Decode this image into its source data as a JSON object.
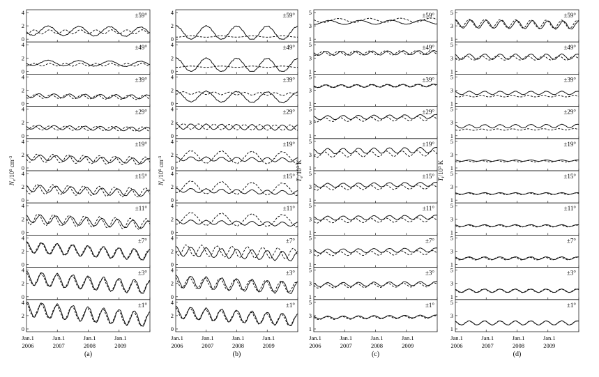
{
  "chart_data": {
    "type": "line",
    "series_styles": [
      "solid",
      "dashed"
    ],
    "latitudes": [
      "±59°",
      "±49°",
      "±39°",
      "±29°",
      "±19°",
      "±15°",
      "±11°",
      "±7°",
      "±3°",
      "±1°"
    ],
    "x_ticks": [
      {
        "top": "Jan.1",
        "bottom": "2006"
      },
      {
        "top": "Jan.1",
        "bottom": "2007"
      },
      {
        "top": "Jan.1",
        "bottom": "2008"
      },
      {
        "top": "Jan.1",
        "bottom": "2009"
      }
    ],
    "xlim": [
      2006.0,
      2010.0
    ],
    "panels": [
      {
        "id": "a",
        "label": "(a)",
        "ylabel_main": "N",
        "ylabel_sub": "e",
        "ylabel_units": "/10",
        "ylabel_exp": "6",
        "ylabel_tail": " cm",
        "ylabel_tailexp": "-3",
        "ylim": [
          0,
          4
        ],
        "yticks": [
          0,
          2,
          4
        ],
        "rows": [
          {
            "solid": {
              "mean": 1.3,
              "amp": 0.7,
              "freq": 1,
              "phase": 0.3,
              "slope": -0.05
            },
            "dashed": {
              "mean": 1.1,
              "amp": 0.3,
              "freq": 2,
              "phase": 0.5,
              "slope": 0
            }
          },
          {
            "solid": {
              "mean": 1.3,
              "amp": 0.4,
              "freq": 1,
              "phase": 0.3,
              "slope": -0.05
            },
            "dashed": {
              "mean": 1.0,
              "amp": 0.2,
              "freq": 2,
              "phase": 0.5,
              "slope": 0
            }
          },
          {
            "solid": {
              "mean": 1.2,
              "amp": 0.3,
              "freq": 2,
              "phase": 0.2,
              "slope": -0.05
            },
            "dashed": {
              "mean": 1.1,
              "amp": 0.3,
              "freq": 2,
              "phase": 0.4,
              "slope": -0.05
            }
          },
          {
            "solid": {
              "mean": 1.3,
              "amp": 0.3,
              "freq": 2,
              "phase": 0.2,
              "slope": -0.08
            },
            "dashed": {
              "mean": 1.2,
              "amp": 0.3,
              "freq": 2,
              "phase": 0.5,
              "slope": -0.05
            }
          },
          {
            "solid": {
              "mean": 1.6,
              "amp": 0.4,
              "freq": 2,
              "phase": 0.1,
              "slope": -0.15
            },
            "dashed": {
              "mean": 1.5,
              "amp": 0.6,
              "freq": 2,
              "phase": 0.3,
              "slope": -0.12
            }
          },
          {
            "solid": {
              "mean": 1.8,
              "amp": 0.5,
              "freq": 2,
              "phase": 0.1,
              "slope": -0.2
            },
            "dashed": {
              "mean": 1.7,
              "amp": 0.7,
              "freq": 2,
              "phase": 0.3,
              "slope": -0.15
            }
          },
          {
            "solid": {
              "mean": 2.1,
              "amp": 0.6,
              "freq": 2,
              "phase": 0.1,
              "slope": -0.25
            },
            "dashed": {
              "mean": 2.0,
              "amp": 0.8,
              "freq": 2,
              "phase": 0.25,
              "slope": -0.2
            }
          },
          {
            "solid": {
              "mean": 2.6,
              "amp": 0.8,
              "freq": 2,
              "phase": 0.0,
              "slope": -0.3
            },
            "dashed": {
              "mean": 2.6,
              "amp": 0.8,
              "freq": 2,
              "phase": 0.05,
              "slope": -0.3
            }
          },
          {
            "solid": {
              "mean": 2.8,
              "amp": 1.0,
              "freq": 2,
              "phase": 0.0,
              "slope": -0.35
            },
            "dashed": {
              "mean": 2.7,
              "amp": 0.9,
              "freq": 2,
              "phase": 0.05,
              "slope": -0.35
            }
          },
          {
            "solid": {
              "mean": 3.0,
              "amp": 1.1,
              "freq": 2,
              "phase": 0.0,
              "slope": -0.4
            },
            "dashed": {
              "mean": 2.9,
              "amp": 1.0,
              "freq": 2,
              "phase": 0.05,
              "slope": -0.4
            }
          }
        ]
      },
      {
        "id": "b",
        "label": "(b)",
        "ylabel_main": "N",
        "ylabel_sub": "e",
        "ylabel_units": "/10",
        "ylabel_exp": "6",
        "ylabel_tail": " cm",
        "ylabel_tailexp": "-3",
        "ylim": [
          0,
          4
        ],
        "yticks": [
          0,
          2,
          4
        ],
        "rows": [
          {
            "solid": {
              "mean": 1.0,
              "amp": 1.0,
              "freq": 1,
              "phase": 0.0,
              "slope": -0.02
            },
            "dashed": {
              "mean": 0.4,
              "amp": 0.1,
              "freq": 1,
              "phase": 0.5,
              "slope": 0
            }
          },
          {
            "solid": {
              "mean": 1.0,
              "amp": 1.0,
              "freq": 1,
              "phase": 0.0,
              "slope": -0.02
            },
            "dashed": {
              "mean": 0.7,
              "amp": 0.1,
              "freq": 1,
              "phase": 0.5,
              "slope": 0
            }
          },
          {
            "solid": {
              "mean": 1.1,
              "amp": 0.8,
              "freq": 1,
              "phase": 0.0,
              "slope": -0.05
            },
            "dashed": {
              "mean": 1.6,
              "amp": 0.2,
              "freq": 2,
              "phase": 0.5,
              "slope": -0.05
            }
          },
          {
            "solid": {
              "mean": 1.4,
              "amp": 0.4,
              "freq": 2,
              "phase": 0.0,
              "slope": -0.05
            },
            "dashed": {
              "mean": 1.4,
              "amp": 0.4,
              "freq": 2,
              "phase": 0.5,
              "slope": -0.05
            }
          },
          {
            "solid": {
              "mean": 1.4,
              "amp": 0.3,
              "freq": 2,
              "phase": 0.0,
              "slope": -0.05
            },
            "dashed": {
              "mean": 1.7,
              "amp": 0.9,
              "freq": 1,
              "phase": 0.5,
              "slope": -0.05
            }
          },
          {
            "solid": {
              "mean": 1.5,
              "amp": 0.3,
              "freq": 2,
              "phase": 0.0,
              "slope": -0.1
            },
            "dashed": {
              "mean": 2.0,
              "amp": 0.9,
              "freq": 1,
              "phase": 0.5,
              "slope": -0.1
            }
          },
          {
            "solid": {
              "mean": 1.6,
              "amp": 0.3,
              "freq": 2,
              "phase": 0.0,
              "slope": -0.1
            },
            "dashed": {
              "mean": 2.1,
              "amp": 0.9,
              "freq": 1,
              "phase": 0.5,
              "slope": -0.1
            }
          },
          {
            "solid": {
              "mean": 2.0,
              "amp": 0.7,
              "freq": 2,
              "phase": 0.0,
              "slope": -0.2
            },
            "dashed": {
              "mean": 2.2,
              "amp": 0.8,
              "freq": 2,
              "phase": 0.3,
              "slope": -0.15
            }
          },
          {
            "solid": {
              "mean": 2.3,
              "amp": 0.9,
              "freq": 2,
              "phase": 0.0,
              "slope": -0.25
            },
            "dashed": {
              "mean": 2.2,
              "amp": 0.8,
              "freq": 2,
              "phase": 0.1,
              "slope": -0.2
            }
          },
          {
            "solid": {
              "mean": 2.5,
              "amp": 0.9,
              "freq": 2,
              "phase": 0.0,
              "slope": -0.3
            },
            "dashed": {
              "mean": 2.4,
              "amp": 0.8,
              "freq": 2,
              "phase": 0.05,
              "slope": -0.3
            }
          }
        ]
      },
      {
        "id": "c",
        "label": "(c)",
        "ylabel_main": "T",
        "ylabel_sub": "e",
        "ylabel_units": "/10",
        "ylabel_exp": "3",
        "ylabel_tail": " K",
        "ylabel_tailexp": "",
        "ylim": [
          1,
          5
        ],
        "yticks": [
          1,
          3,
          5
        ],
        "rows": [
          {
            "solid": {
              "mean": 3.5,
              "amp": 0.3,
              "freq": 1,
              "phase": 0.5,
              "slope": 0.02
            },
            "dashed": {
              "mean": 3.8,
              "amp": 0.3,
              "freq": 1,
              "phase": 0.2,
              "slope": 0.02
            }
          },
          {
            "solid": {
              "mean": 3.7,
              "amp": 0.3,
              "freq": 2,
              "phase": 0.2,
              "slope": 0.03
            },
            "dashed": {
              "mean": 3.7,
              "amp": 0.3,
              "freq": 2,
              "phase": 0.4,
              "slope": 0.03
            }
          },
          {
            "solid": {
              "mean": 3.6,
              "amp": 0.2,
              "freq": 2,
              "phase": 0.2,
              "slope": 0.03
            },
            "dashed": {
              "mean": 3.6,
              "amp": 0.2,
              "freq": 2,
              "phase": 0.3,
              "slope": 0.03
            }
          },
          {
            "solid": {
              "mean": 3.7,
              "amp": 0.3,
              "freq": 2,
              "phase": 0.1,
              "slope": 0.05
            },
            "dashed": {
              "mean": 3.4,
              "amp": 0.3,
              "freq": 2,
              "phase": 0.3,
              "slope": 0.05
            }
          },
          {
            "solid": {
              "mean": 3.5,
              "amp": 0.4,
              "freq": 2,
              "phase": 0.1,
              "slope": 0.05
            },
            "dashed": {
              "mean": 3.0,
              "amp": 0.4,
              "freq": 2,
              "phase": 0.3,
              "slope": 0.05
            }
          },
          {
            "solid": {
              "mean": 3.2,
              "amp": 0.3,
              "freq": 2,
              "phase": 0.1,
              "slope": 0.05
            },
            "dashed": {
              "mean": 2.8,
              "amp": 0.3,
              "freq": 2,
              "phase": 0.3,
              "slope": 0.05
            }
          },
          {
            "solid": {
              "mean": 3.1,
              "amp": 0.3,
              "freq": 2,
              "phase": 0.1,
              "slope": 0.05
            },
            "dashed": {
              "mean": 2.7,
              "amp": 0.3,
              "freq": 2,
              "phase": 0.3,
              "slope": 0.05
            }
          },
          {
            "solid": {
              "mean": 3.0,
              "amp": 0.3,
              "freq": 2,
              "phase": 0.1,
              "slope": 0.05
            },
            "dashed": {
              "mean": 2.6,
              "amp": 0.3,
              "freq": 2,
              "phase": 0.3,
              "slope": 0.05
            }
          },
          {
            "solid": {
              "mean": 2.8,
              "amp": 0.3,
              "freq": 2,
              "phase": 0.1,
              "slope": 0.05
            },
            "dashed": {
              "mean": 2.6,
              "amp": 0.3,
              "freq": 2,
              "phase": 0.2,
              "slope": 0.05
            }
          },
          {
            "solid": {
              "mean": 2.7,
              "amp": 0.2,
              "freq": 2,
              "phase": 0.1,
              "slope": 0.05
            },
            "dashed": {
              "mean": 2.6,
              "amp": 0.2,
              "freq": 2,
              "phase": 0.15,
              "slope": 0.05
            }
          }
        ]
      },
      {
        "id": "d",
        "label": "(d)",
        "ylabel_main": "T",
        "ylabel_sub": "i",
        "ylabel_units": "/10",
        "ylabel_exp": "3",
        "ylabel_tail": " K",
        "ylabel_tailexp": "",
        "ylim": [
          1,
          5
        ],
        "yticks": [
          1,
          3,
          5
        ],
        "rows": [
          {
            "solid": {
              "mean": 3.3,
              "amp": 0.6,
              "freq": 2,
              "phase": 0.0,
              "slope": -0.05
            },
            "dashed": {
              "mean": 3.4,
              "amp": 0.6,
              "freq": 2,
              "phase": 0.1,
              "slope": -0.05
            }
          },
          {
            "solid": {
              "mean": 3.2,
              "amp": 0.4,
              "freq": 2,
              "phase": 0.1,
              "slope": 0
            },
            "dashed": {
              "mean": 3.0,
              "amp": 0.3,
              "freq": 2,
              "phase": 0.3,
              "slope": 0
            }
          },
          {
            "solid": {
              "mean": 2.6,
              "amp": 0.25,
              "freq": 2,
              "phase": 0.1,
              "slope": 0
            },
            "dashed": {
              "mean": 2.1,
              "amp": 0.1,
              "freq": 2,
              "phase": 0.3,
              "slope": 0
            }
          },
          {
            "solid": {
              "mean": 2.4,
              "amp": 0.25,
              "freq": 2,
              "phase": 0.1,
              "slope": 0.02
            },
            "dashed": {
              "mean": 1.9,
              "amp": 0.1,
              "freq": 2,
              "phase": 0.3,
              "slope": 0.02
            }
          },
          {
            "solid": {
              "mean": 2.1,
              "amp": 0.1,
              "freq": 2,
              "phase": 0.1,
              "slope": 0
            },
            "dashed": {
              "mean": 2.0,
              "amp": 0.1,
              "freq": 2,
              "phase": 0.3,
              "slope": 0
            }
          },
          {
            "solid": {
              "mean": 2.0,
              "amp": 0.12,
              "freq": 2,
              "phase": 0.1,
              "slope": 0
            },
            "dashed": {
              "mean": 1.95,
              "amp": 0.12,
              "freq": 2,
              "phase": 0.2,
              "slope": 0
            }
          },
          {
            "solid": {
              "mean": 2.0,
              "amp": 0.15,
              "freq": 2,
              "phase": 0.1,
              "slope": 0
            },
            "dashed": {
              "mean": 1.95,
              "amp": 0.15,
              "freq": 2,
              "phase": 0.2,
              "slope": 0
            }
          },
          {
            "solid": {
              "mean": 1.95,
              "amp": 0.2,
              "freq": 2,
              "phase": 0.1,
              "slope": 0
            },
            "dashed": {
              "mean": 1.9,
              "amp": 0.2,
              "freq": 2,
              "phase": 0.2,
              "slope": 0
            }
          },
          {
            "solid": {
              "mean": 1.9,
              "amp": 0.25,
              "freq": 2,
              "phase": 0.1,
              "slope": 0
            },
            "dashed": {
              "mean": 1.9,
              "amp": 0.25,
              "freq": 2,
              "phase": 0.15,
              "slope": 0
            }
          },
          {
            "solid": {
              "mean": 1.9,
              "amp": 0.3,
              "freq": 2,
              "phase": 0.1,
              "slope": 0
            },
            "dashed": {
              "mean": 1.9,
              "amp": 0.3,
              "freq": 2,
              "phase": 0.12,
              "slope": 0
            }
          }
        ]
      }
    ]
  }
}
